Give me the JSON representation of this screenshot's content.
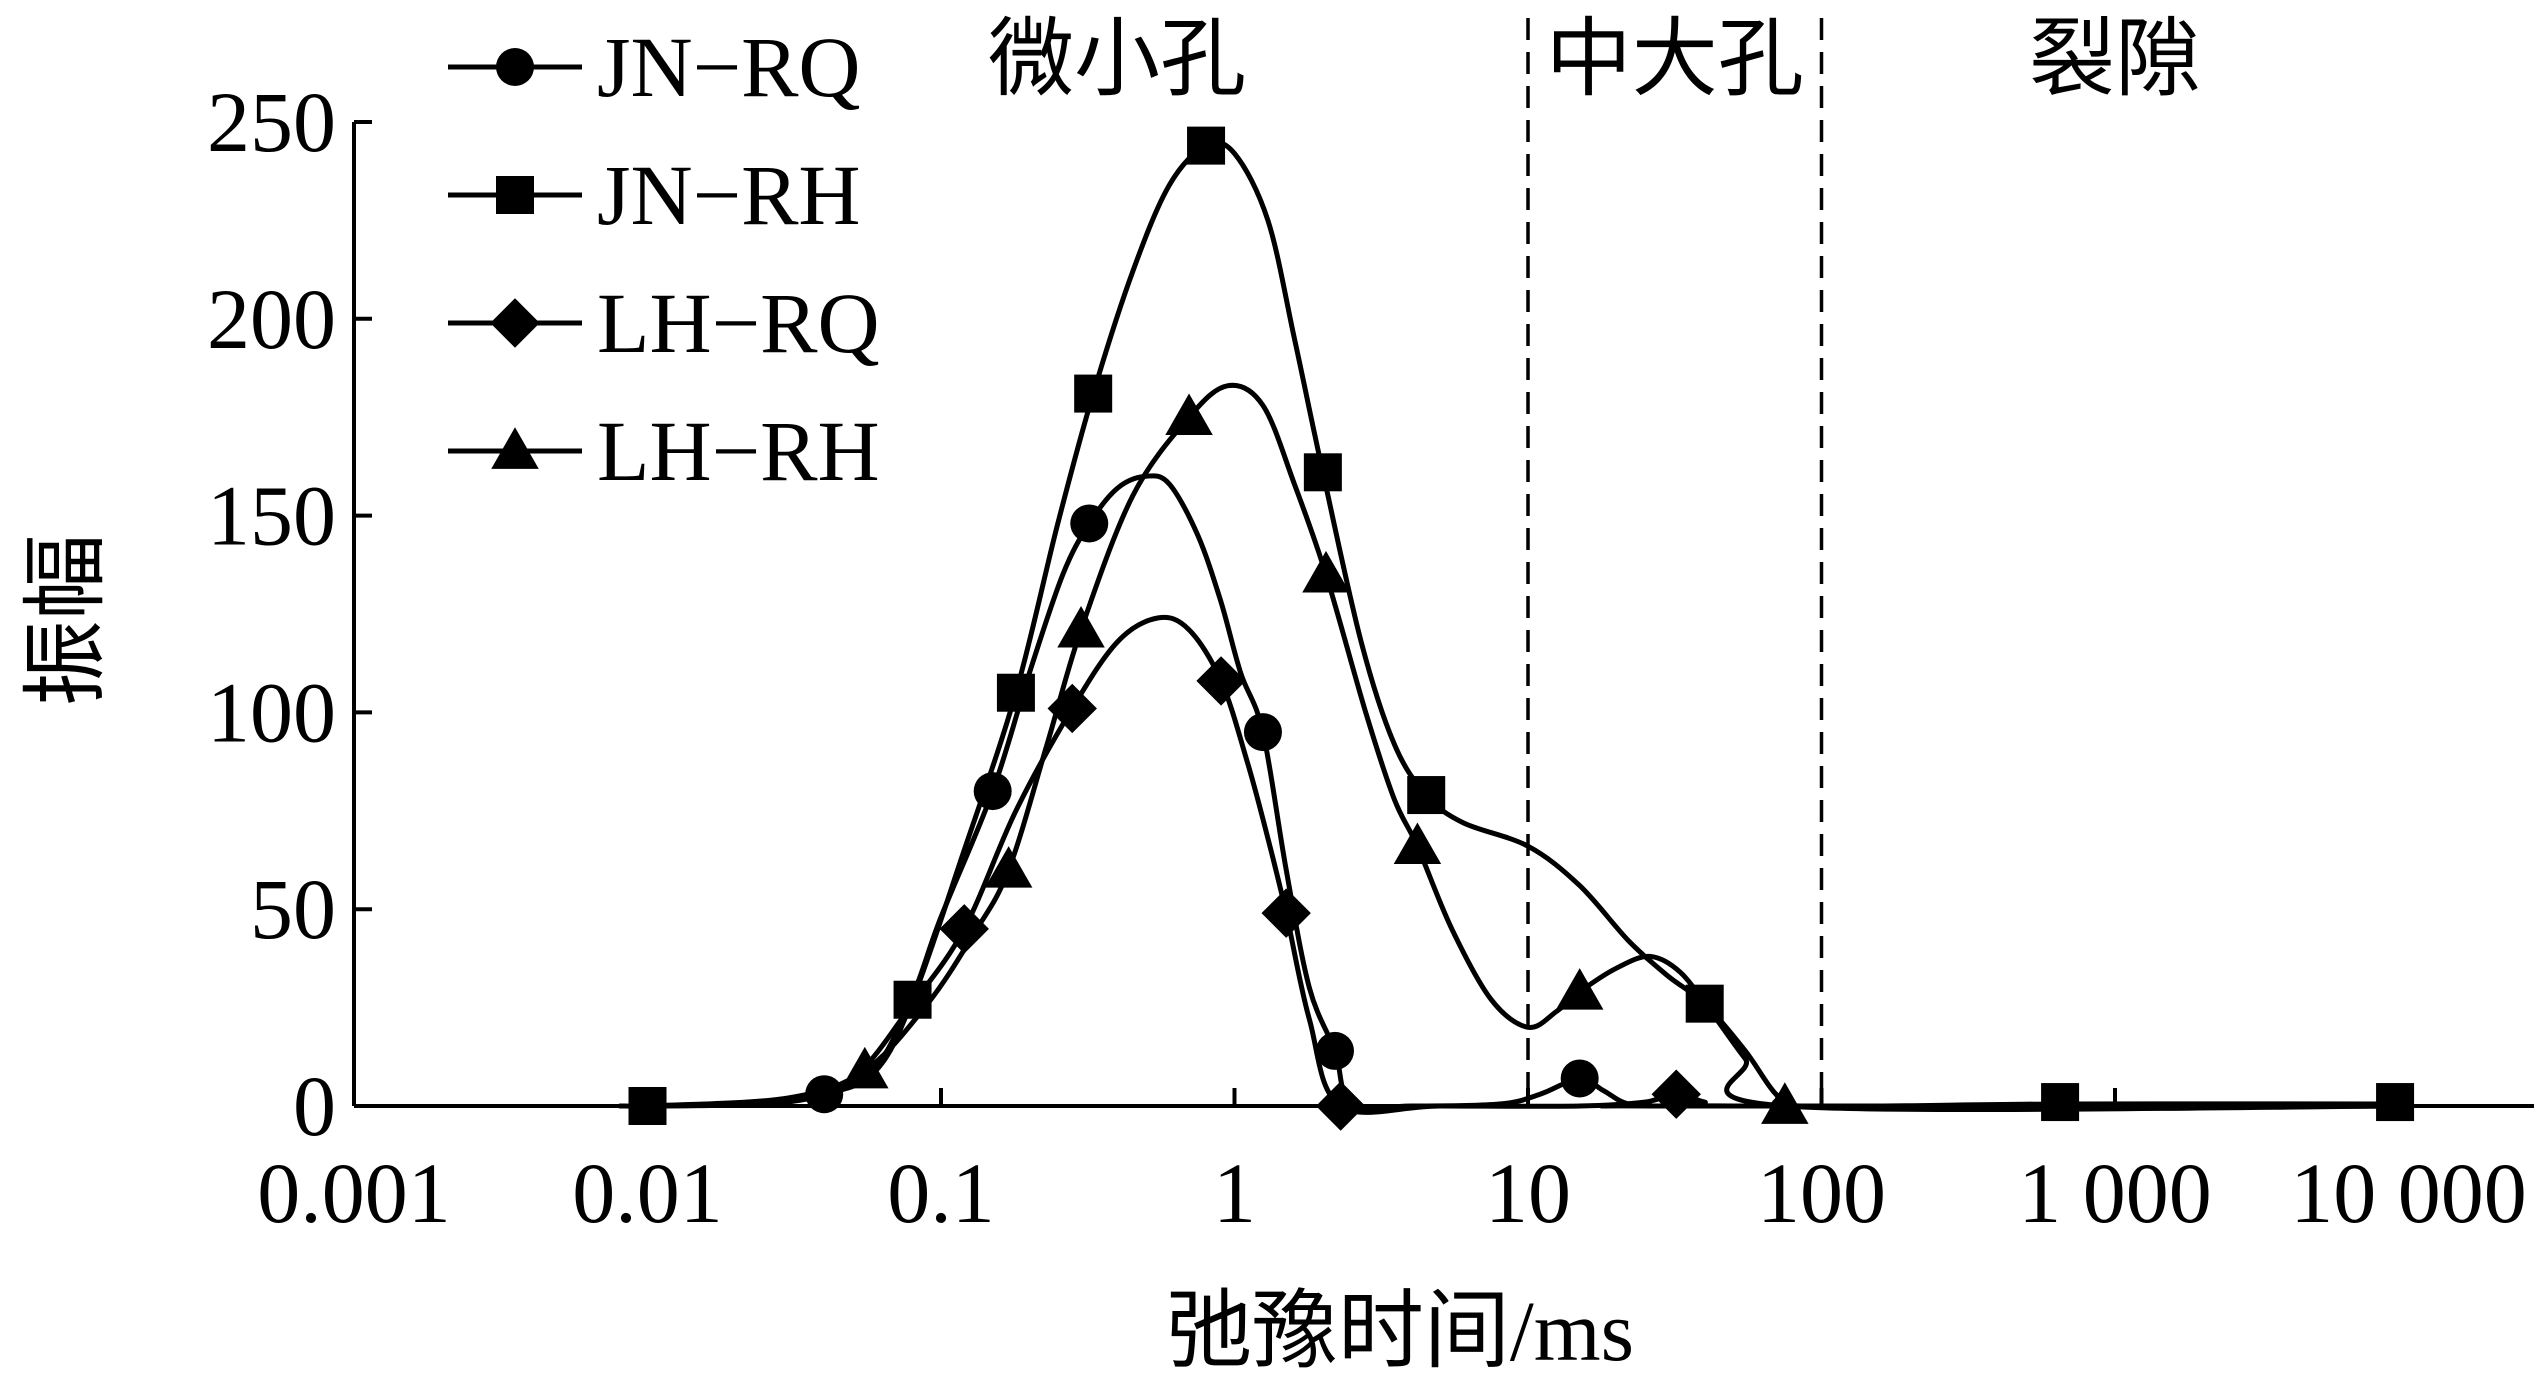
{
  "chart_data": {
    "type": "line",
    "xscale": "log",
    "xlabel": "弛豫时间/ms",
    "ylabel": "振幅",
    "xlim": [
      0.001,
      10000
    ],
    "ylim": [
      0,
      250
    ],
    "xticks": [
      {
        "value": 0.001,
        "label": "0.001"
      },
      {
        "value": 0.01,
        "label": "0.01"
      },
      {
        "value": 0.1,
        "label": "0.1"
      },
      {
        "value": 1,
        "label": "1"
      },
      {
        "value": 10,
        "label": "10"
      },
      {
        "value": 100,
        "label": "100"
      },
      {
        "value": 1000,
        "label": "1 000"
      },
      {
        "value": 10000,
        "label": "10 000"
      }
    ],
    "yticks": [
      {
        "value": 0,
        "label": "0"
      },
      {
        "value": 50,
        "label": "50"
      },
      {
        "value": 100,
        "label": "100"
      },
      {
        "value": 150,
        "label": "150"
      },
      {
        "value": 200,
        "label": "200"
      },
      {
        "value": 250,
        "label": "250"
      }
    ],
    "regions": [
      {
        "label": "微小孔",
        "from": 0.001,
        "to": 10
      },
      {
        "label": "中大孔",
        "from": 10,
        "to": 100
      },
      {
        "label": "裂隙",
        "from": 100,
        "to": 10000
      }
    ],
    "legend_position": "top-left",
    "grid": false,
    "series": [
      {
        "name": "JN−RQ",
        "marker": "circle",
        "points": [
          [
            0.04,
            3
          ],
          [
            0.15,
            80
          ],
          [
            0.32,
            148
          ],
          [
            1.25,
            95
          ],
          [
            2.2,
            14
          ],
          [
            15,
            7
          ]
        ],
        "curve": [
          [
            0.01,
            0
          ],
          [
            0.02,
            0.5
          ],
          [
            0.04,
            3
          ],
          [
            0.06,
            10
          ],
          [
            0.08,
            28
          ],
          [
            0.1,
            48
          ],
          [
            0.15,
            80
          ],
          [
            0.2,
            110
          ],
          [
            0.26,
            135
          ],
          [
            0.32,
            148
          ],
          [
            0.4,
            157
          ],
          [
            0.5,
            160
          ],
          [
            0.6,
            158
          ],
          [
            0.75,
            145
          ],
          [
            0.9,
            128
          ],
          [
            1.05,
            110
          ],
          [
            1.25,
            95
          ],
          [
            1.5,
            60
          ],
          [
            1.8,
            30
          ],
          [
            2.2,
            14
          ],
          [
            2.5,
            0.5
          ],
          [
            4,
            0
          ],
          [
            8,
            0.5
          ],
          [
            11,
            3
          ],
          [
            15,
            7
          ],
          [
            18,
            4
          ],
          [
            22,
            0.5
          ],
          [
            30,
            0
          ],
          [
            10000,
            0
          ]
        ]
      },
      {
        "name": "JN−RH",
        "marker": "square",
        "points": [
          [
            0.01,
            0
          ],
          [
            0.08,
            27
          ],
          [
            0.18,
            105
          ],
          [
            0.33,
            181
          ],
          [
            0.8,
            244
          ],
          [
            2,
            161
          ],
          [
            4.5,
            79
          ],
          [
            40,
            26
          ],
          [
            650,
            1
          ],
          [
            9000,
            1
          ]
        ],
        "curve": [
          [
            0.008,
            0
          ],
          [
            0.01,
            0
          ],
          [
            0.02,
            0.5
          ],
          [
            0.04,
            3
          ],
          [
            0.06,
            9
          ],
          [
            0.08,
            27
          ],
          [
            0.12,
            65
          ],
          [
            0.18,
            105
          ],
          [
            0.25,
            148
          ],
          [
            0.33,
            181
          ],
          [
            0.45,
            212
          ],
          [
            0.6,
            234
          ],
          [
            0.8,
            244
          ],
          [
            1,
            242
          ],
          [
            1.3,
            225
          ],
          [
            1.6,
            195
          ],
          [
            2,
            161
          ],
          [
            2.7,
            118
          ],
          [
            3.5,
            92
          ],
          [
            4.5,
            79
          ],
          [
            6,
            72
          ],
          [
            10,
            66
          ],
          [
            15,
            56
          ],
          [
            22,
            42
          ],
          [
            30,
            33
          ],
          [
            40,
            26
          ],
          [
            55,
            14
          ],
          [
            70,
            3
          ],
          [
            85,
            0
          ],
          [
            650,
            0.5
          ],
          [
            9000,
            0.5
          ]
        ]
      },
      {
        "name": "LH−RQ",
        "marker": "diamond",
        "points": [
          [
            0.12,
            45
          ],
          [
            0.28,
            101
          ],
          [
            0.9,
            108
          ],
          [
            1.5,
            49
          ],
          [
            2.3,
            0
          ],
          [
            32,
            3
          ]
        ],
        "curve": [
          [
            0.01,
            0
          ],
          [
            0.03,
            1
          ],
          [
            0.05,
            7
          ],
          [
            0.08,
            26
          ],
          [
            0.12,
            45
          ],
          [
            0.18,
            75
          ],
          [
            0.28,
            101
          ],
          [
            0.4,
            118
          ],
          [
            0.55,
            124
          ],
          [
            0.7,
            121
          ],
          [
            0.9,
            108
          ],
          [
            1.1,
            88
          ],
          [
            1.3,
            68
          ],
          [
            1.5,
            49
          ],
          [
            1.8,
            22
          ],
          [
            2.3,
            0
          ],
          [
            5,
            0
          ],
          [
            15,
            0
          ],
          [
            25,
            1
          ],
          [
            32,
            3
          ],
          [
            40,
            1
          ],
          [
            50,
            0
          ],
          [
            10000,
            0
          ]
        ]
      },
      {
        "name": "LH−RH",
        "marker": "triangle",
        "points": [
          [
            0.055,
            9
          ],
          [
            0.17,
            60
          ],
          [
            0.3,
            121
          ],
          [
            0.7,
            175
          ],
          [
            2.05,
            135
          ],
          [
            4.2,
            66
          ],
          [
            15,
            29
          ],
          [
            75,
            0
          ]
        ],
        "curve": [
          [
            0.01,
            0
          ],
          [
            0.03,
            2
          ],
          [
            0.055,
            9
          ],
          [
            0.09,
            26
          ],
          [
            0.13,
            44
          ],
          [
            0.17,
            60
          ],
          [
            0.23,
            92
          ],
          [
            0.3,
            121
          ],
          [
            0.45,
            155
          ],
          [
            0.7,
            175
          ],
          [
            0.95,
            183
          ],
          [
            1.25,
            178
          ],
          [
            1.6,
            158
          ],
          [
            2.05,
            135
          ],
          [
            2.8,
            100
          ],
          [
            3.5,
            78
          ],
          [
            4.2,
            66
          ],
          [
            5.5,
            45
          ],
          [
            7.5,
            27
          ],
          [
            10,
            20
          ],
          [
            12.5,
            24
          ],
          [
            15,
            29
          ],
          [
            20,
            35
          ],
          [
            26,
            38
          ],
          [
            33,
            34
          ],
          [
            42,
            24
          ],
          [
            55,
            12
          ],
          [
            75,
            0
          ],
          [
            10000,
            0
          ]
        ]
      }
    ]
  }
}
